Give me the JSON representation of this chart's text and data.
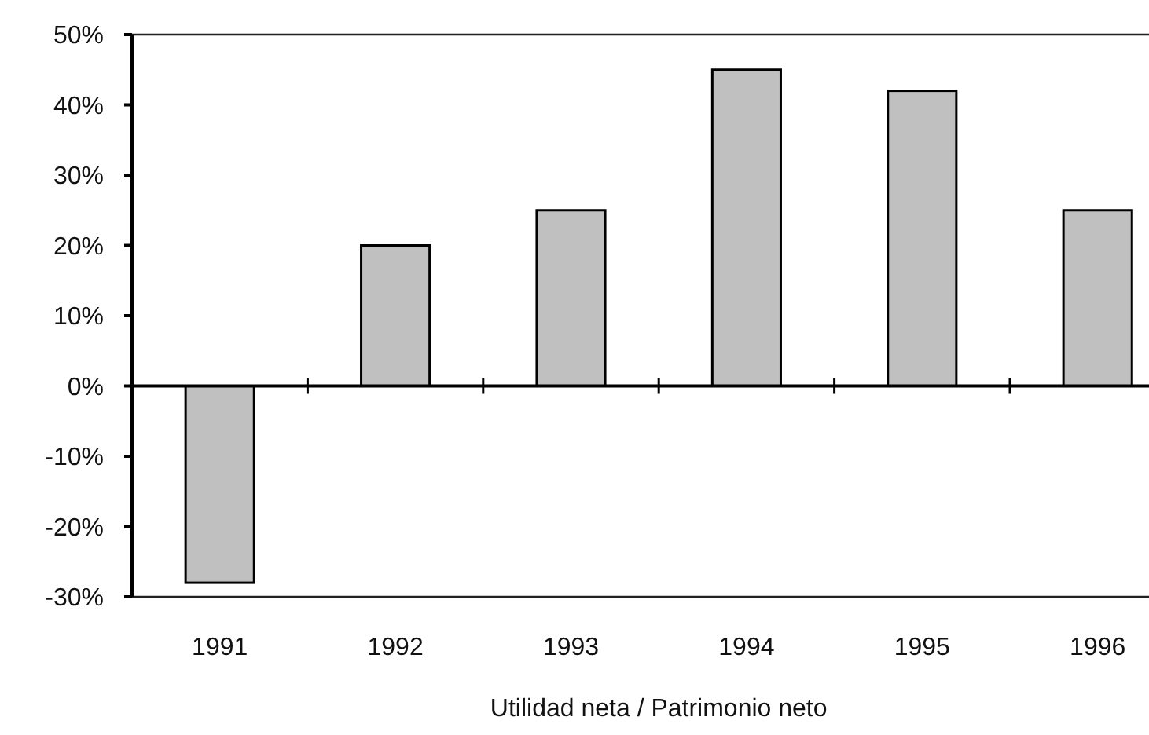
{
  "chart_data": {
    "type": "bar",
    "xlabel": "Utilidad neta / Patrimonio neto",
    "categories": [
      "1991",
      "1992",
      "1993",
      "1994",
      "1995",
      "1996"
    ],
    "values": [
      -28,
      20,
      25,
      45,
      42,
      25
    ],
    "color": "#c0c0c0",
    "ylim": [
      -30,
      50
    ],
    "yticks": [
      {
        "value": -30,
        "label": "-30%"
      },
      {
        "value": -20,
        "label": "-20%"
      },
      {
        "value": -10,
        "label": "-10%"
      },
      {
        "value": 0,
        "label": "0%"
      },
      {
        "value": 10,
        "label": "10%"
      },
      {
        "value": 20,
        "label": "20%"
      },
      {
        "value": 30,
        "label": "30%"
      },
      {
        "value": 40,
        "label": "40%"
      },
      {
        "value": 50,
        "label": "50%"
      }
    ]
  }
}
